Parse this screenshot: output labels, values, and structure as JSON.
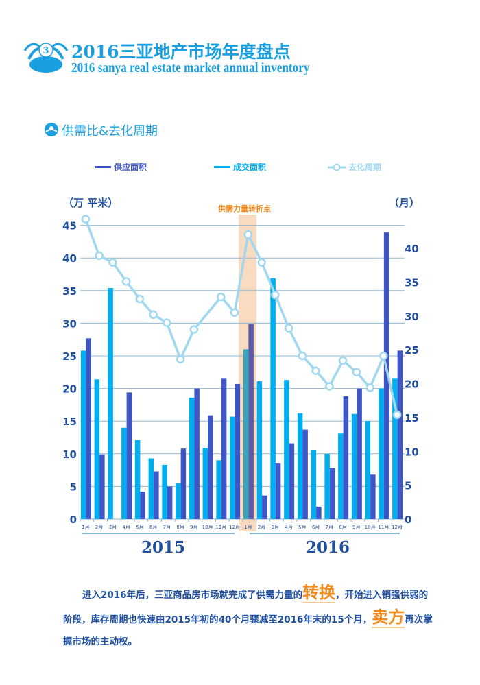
{
  "header": {
    "badge_number": "3",
    "title_cn": "2016三亚地产市场年度盘点",
    "title_en": "2016 sanya real estate market annual inventory"
  },
  "section_title": "供需比&去化周期",
  "paragraph": {
    "p1": "进入2016年后，三亚商品房市场就完成了供需力量的",
    "hl1": "转换",
    "p2": "，开始进入销强供弱的阶段，库存周期也快速由2015年初的40个月骤减至2016年末的15个月，",
    "hl2": "卖方",
    "p3": "再次掌握市场的主动权。"
  },
  "colors": {
    "supply": "#3f56c8",
    "deal": "#00aeef",
    "cycle": "#9fd8f0",
    "highlight": "#f6d2b0",
    "accent": "#f28a1c",
    "axis": "#1f4fa0"
  },
  "chart_data": {
    "type": "bar+line",
    "legend": [
      "供应面积",
      "成交面积",
      "去化周期"
    ],
    "left_axis_label": "（万 平米）",
    "right_axis_label": "（月）",
    "annotation": "供需力量转折点",
    "left_ylim": [
      0,
      45
    ],
    "left_ticks": [
      "0",
      "5",
      "10",
      "15",
      "20",
      "25",
      "30",
      "35",
      "40",
      "45"
    ],
    "right_ticks": [
      "0",
      "5",
      "10",
      "15",
      "20",
      "25",
      "30",
      "35",
      "40"
    ],
    "years": [
      "2015",
      "2016"
    ],
    "categories": [
      "1月",
      "2月",
      "3月",
      "4月",
      "5月",
      "6月",
      "7月",
      "8月",
      "9月",
      "10月",
      "11月",
      "12月",
      "1月",
      "2月",
      "3月",
      "4月",
      "5月",
      "6月",
      "7月",
      "8月",
      "9月",
      "10月",
      "11月",
      "12月"
    ],
    "series": [
      {
        "name": "供应面积",
        "axis": "left",
        "values": [
          27.7,
          9.9,
          0,
          19.4,
          4.2,
          7.3,
          5.0,
          10.8,
          20.0,
          15.9,
          21.5,
          20.7,
          29.9,
          3.6,
          8.6,
          11.6,
          13.7,
          1.9,
          7.8,
          18.8,
          20.0,
          6.8,
          43.9,
          25.8
        ]
      },
      {
        "name": "成交面积",
        "axis": "left",
        "values": [
          25.8,
          21.4,
          35.4,
          14.0,
          12.1,
          9.3,
          8.3,
          5.5,
          18.6,
          10.9,
          9.0,
          15.7,
          26.0,
          21.1,
          36.9,
          21.3,
          16.2,
          10.6,
          10.0,
          13.1,
          16.1,
          15.0,
          20.0,
          21.5
        ]
      },
      {
        "name": "去化周期",
        "axis": "right",
        "values": [
          44.3,
          38.9,
          37.9,
          35.1,
          32.5,
          30.2,
          29.0,
          23.6,
          28.0,
          null,
          32.8,
          30.5,
          42.0,
          37.9,
          33.1,
          28.2,
          24.1,
          21.9,
          19.6,
          23.4,
          21.7,
          19.4,
          24.1,
          15.4
        ]
      }
    ]
  }
}
